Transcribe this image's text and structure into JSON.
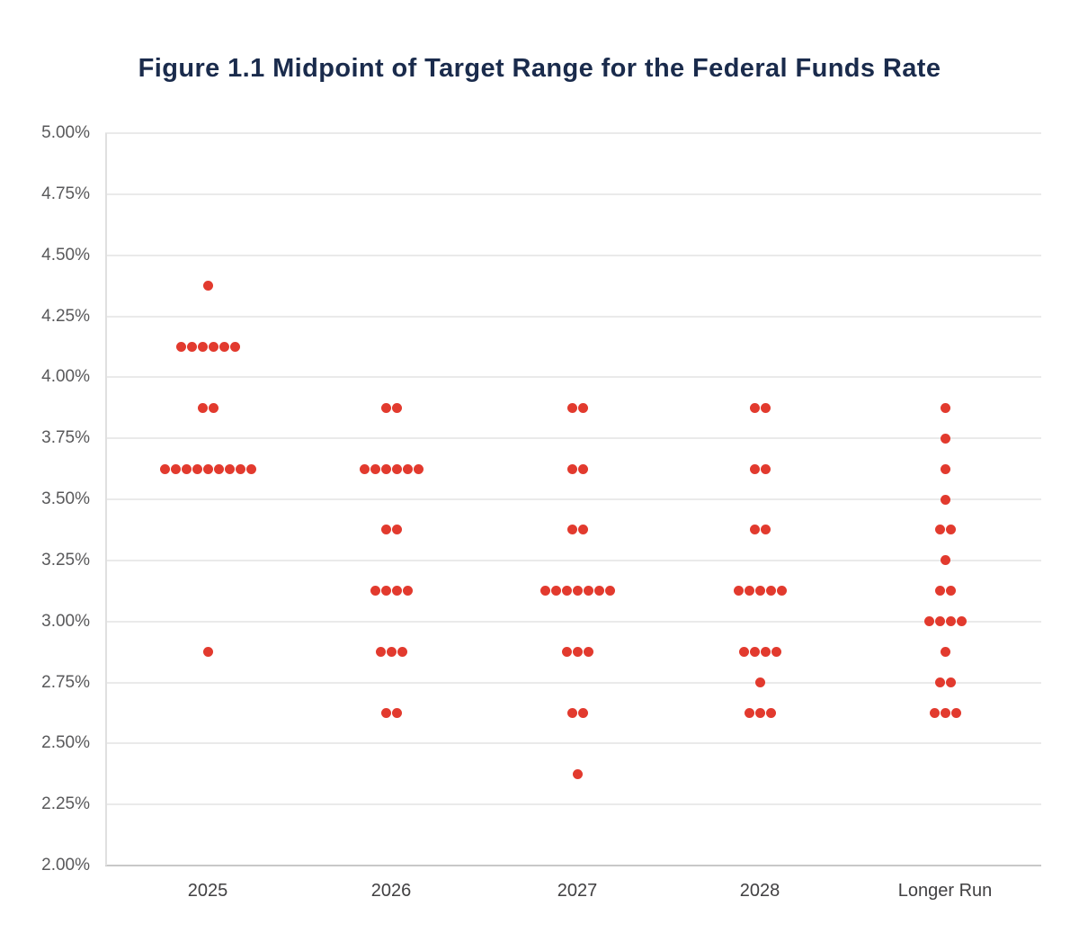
{
  "header": {
    "title": "Figure 1.1 Midpoint of Target Range for the Federal Funds Rate"
  },
  "chart_data": {
    "type": "scatter",
    "subtype": "fomc-dot-plot",
    "title": "Figure 1.1 Midpoint of Target Range for the Federal Funds Rate",
    "xlabel": "",
    "ylabel": "",
    "grid": "horizontal",
    "legend_position": "none",
    "categories": [
      "2025",
      "2026",
      "2027",
      "2028",
      "Longer Run"
    ],
    "y_axis": {
      "min": 2.0,
      "max": 5.0,
      "step": 0.25,
      "tick_labels": [
        "5.00%",
        "4.75%",
        "4.50%",
        "4.25%",
        "4.00%",
        "3.75%",
        "3.50%",
        "3.25%",
        "3.00%",
        "2.75%",
        "2.50%",
        "2.25%",
        "2.00%"
      ]
    },
    "series": [
      {
        "category": "2025",
        "dots": [
          {
            "rate": 4.375,
            "count": 1
          },
          {
            "rate": 4.125,
            "count": 6
          },
          {
            "rate": 3.875,
            "count": 2
          },
          {
            "rate": 3.625,
            "count": 9
          },
          {
            "rate": 2.875,
            "count": 1
          }
        ]
      },
      {
        "category": "2026",
        "dots": [
          {
            "rate": 3.875,
            "count": 2
          },
          {
            "rate": 3.625,
            "count": 6
          },
          {
            "rate": 3.375,
            "count": 2
          },
          {
            "rate": 3.125,
            "count": 4
          },
          {
            "rate": 2.875,
            "count": 3
          },
          {
            "rate": 2.625,
            "count": 2
          }
        ]
      },
      {
        "category": "2027",
        "dots": [
          {
            "rate": 3.875,
            "count": 2
          },
          {
            "rate": 3.625,
            "count": 2
          },
          {
            "rate": 3.375,
            "count": 2
          },
          {
            "rate": 3.125,
            "count": 7
          },
          {
            "rate": 2.875,
            "count": 3
          },
          {
            "rate": 2.625,
            "count": 2
          },
          {
            "rate": 2.375,
            "count": 1
          }
        ]
      },
      {
        "category": "2028",
        "dots": [
          {
            "rate": 3.875,
            "count": 2
          },
          {
            "rate": 3.625,
            "count": 2
          },
          {
            "rate": 3.375,
            "count": 2
          },
          {
            "rate": 3.125,
            "count": 5
          },
          {
            "rate": 2.875,
            "count": 4
          },
          {
            "rate": 2.75,
            "count": 1
          },
          {
            "rate": 2.625,
            "count": 3
          }
        ]
      },
      {
        "category": "Longer Run",
        "dots": [
          {
            "rate": 3.875,
            "count": 1
          },
          {
            "rate": 3.75,
            "count": 1
          },
          {
            "rate": 3.625,
            "count": 1
          },
          {
            "rate": 3.5,
            "count": 1
          },
          {
            "rate": 3.375,
            "count": 2
          },
          {
            "rate": 3.25,
            "count": 1
          },
          {
            "rate": 3.125,
            "count": 2
          },
          {
            "rate": 3.0,
            "count": 4
          },
          {
            "rate": 2.875,
            "count": 1
          },
          {
            "rate": 2.75,
            "count": 2
          },
          {
            "rate": 2.625,
            "count": 3
          }
        ]
      }
    ]
  },
  "style": {
    "title_color": "#1a2b4c",
    "dot_color": "#e23a2e",
    "gridline_color": "#eaeaea",
    "axis_line_color": "#c8c8c8",
    "y_label_color": "#59595b",
    "x_label_color": "#414042",
    "background": "#ffffff"
  }
}
